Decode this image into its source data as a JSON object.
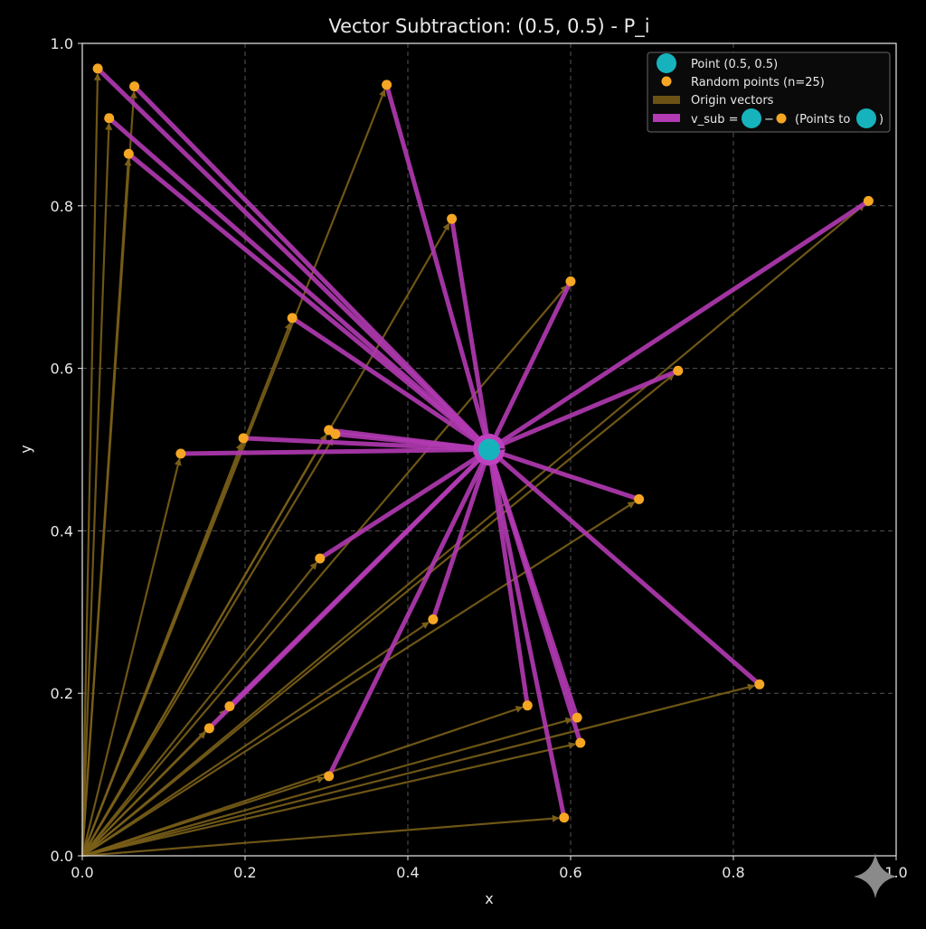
{
  "chart_data": {
    "type": "scatter",
    "title": "Vector Subtraction: (0.5, 0.5) - P_i",
    "xlabel": "x",
    "ylabel": "y",
    "xlim": [
      0,
      1
    ],
    "ylim": [
      0,
      1
    ],
    "xticks": [
      "0.0",
      "0.2",
      "0.4",
      "0.6",
      "0.8",
      "1.0"
    ],
    "yticks": [
      "0.0",
      "0.2",
      "0.4",
      "0.6",
      "0.8",
      "1.0"
    ],
    "grid": true,
    "legend_position": "top-right",
    "center_point": {
      "x": 0.5,
      "y": 0.5
    },
    "points": [
      {
        "x": 0.019,
        "y": 0.969
      },
      {
        "x": 0.064,
        "y": 0.947
      },
      {
        "x": 0.033,
        "y": 0.908
      },
      {
        "x": 0.057,
        "y": 0.864
      },
      {
        "x": 0.374,
        "y": 0.949
      },
      {
        "x": 0.454,
        "y": 0.784
      },
      {
        "x": 0.6,
        "y": 0.707
      },
      {
        "x": 0.258,
        "y": 0.662
      },
      {
        "x": 0.966,
        "y": 0.806
      },
      {
        "x": 0.732,
        "y": 0.597
      },
      {
        "x": 0.198,
        "y": 0.514
      },
      {
        "x": 0.303,
        "y": 0.524
      },
      {
        "x": 0.311,
        "y": 0.519
      },
      {
        "x": 0.121,
        "y": 0.495
      },
      {
        "x": 0.684,
        "y": 0.439
      },
      {
        "x": 0.292,
        "y": 0.366
      },
      {
        "x": 0.431,
        "y": 0.291
      },
      {
        "x": 0.181,
        "y": 0.184
      },
      {
        "x": 0.156,
        "y": 0.157
      },
      {
        "x": 0.547,
        "y": 0.185
      },
      {
        "x": 0.608,
        "y": 0.17
      },
      {
        "x": 0.612,
        "y": 0.139
      },
      {
        "x": 0.832,
        "y": 0.211
      },
      {
        "x": 0.303,
        "y": 0.098
      },
      {
        "x": 0.592,
        "y": 0.047
      }
    ],
    "legend": {
      "point": "Point (0.5, 0.5)",
      "random": "Random points (n=25)",
      "origin": "Origin vectors",
      "vsub_prefix": "v_sub =",
      "vsub_minus": "−",
      "vsub_points_to": "(Points to",
      "vsub_close": ")"
    },
    "colors": {
      "center": "#17b3bd",
      "points": "#f5a623",
      "origin_vectors": "#6b5214",
      "vsub": "#b23ab2",
      "grid": "#555555"
    }
  }
}
